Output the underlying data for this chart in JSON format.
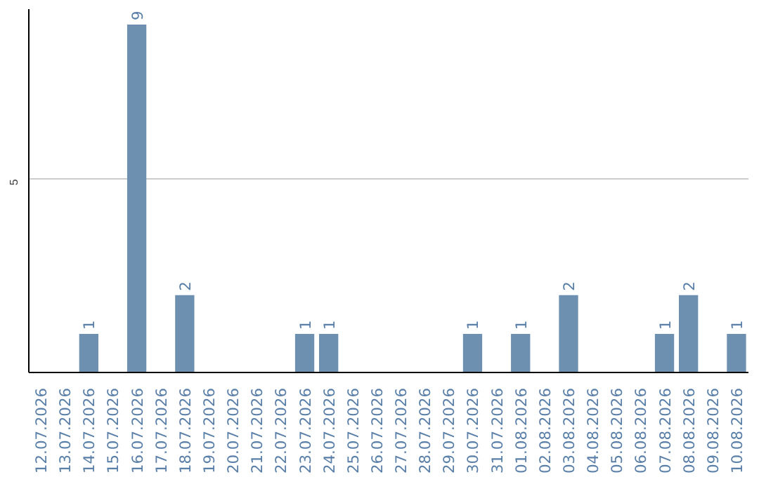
{
  "chart_data": {
    "type": "bar",
    "categories": [
      "12.07.2026",
      "13.07.2026",
      "14.07.2026",
      "15.07.2026",
      "16.07.2026",
      "17.07.2026",
      "18.07.2026",
      "19.07.2026",
      "20.07.2026",
      "21.07.2026",
      "22.07.2026",
      "23.07.2026",
      "24.07.2026",
      "25.07.2026",
      "26.07.2026",
      "27.07.2026",
      "28.07.2026",
      "29.07.2026",
      "30.07.2026",
      "31.07.2026",
      "01.08.2026",
      "02.08.2026",
      "03.08.2026",
      "04.08.2026",
      "05.08.2026",
      "06.08.2026",
      "07.08.2026",
      "08.08.2026",
      "09.08.2026",
      "10.08.2026"
    ],
    "values": [
      0,
      0,
      1,
      0,
      9,
      0,
      2,
      0,
      0,
      0,
      0,
      1,
      1,
      0,
      0,
      0,
      0,
      0,
      1,
      0,
      1,
      0,
      2,
      0,
      0,
      0,
      1,
      2,
      0,
      1
    ],
    "value_labels": [
      null,
      null,
      "1",
      null,
      "9",
      null,
      "2",
      null,
      null,
      null,
      null,
      "1",
      "1",
      null,
      null,
      null,
      null,
      null,
      "1",
      null,
      "1",
      null,
      "2",
      null,
      null,
      null,
      "1",
      "2",
      null,
      "1"
    ],
    "color": "#6d8fb0",
    "ylim": [
      0,
      9.4
    ],
    "yticks": [
      5
    ],
    "grid": "y"
  }
}
